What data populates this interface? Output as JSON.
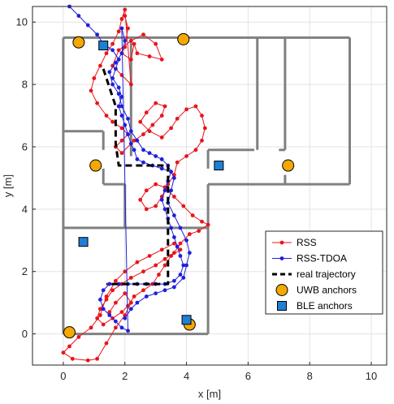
{
  "chart_data": {
    "type": "line",
    "xlabel": "x [m]",
    "ylabel": "y [m]",
    "xlim": [
      -1,
      10.5
    ],
    "ylim": [
      -1,
      10.5
    ],
    "xticks": [
      0,
      2,
      4,
      6,
      8,
      10
    ],
    "yticks": [
      0,
      2,
      4,
      6,
      8,
      10
    ],
    "xtick_labels": [
      "0",
      "2",
      "4",
      "6",
      "8",
      "10"
    ],
    "ytick_labels": [
      "0",
      "2",
      "4",
      "6",
      "8",
      "10"
    ],
    "grid": true,
    "legend_position": "bottom-right",
    "colors": {
      "rss": "#e8141b",
      "rss_tdoa": "#1f1fdb",
      "walls": "#808080",
      "uwb_fill": "#f5a800",
      "ble_fill": "#1f7fd6",
      "trajectory": "#000000"
    },
    "walls": [
      [
        [
          0,
          9.5
        ],
        [
          9.3,
          9.5
        ]
      ],
      [
        [
          9.3,
          9.5
        ],
        [
          9.3,
          4.8
        ]
      ],
      [
        [
          9.3,
          4.8
        ],
        [
          4.7,
          4.8
        ]
      ],
      [
        [
          4.7,
          4.8
        ],
        [
          4.7,
          0
        ]
      ],
      [
        [
          4.7,
          0
        ],
        [
          0,
          0
        ]
      ],
      [
        [
          0,
          0
        ],
        [
          0,
          9.5
        ]
      ],
      [
        [
          2.2,
          9.5
        ],
        [
          2.2,
          5.7
        ]
      ],
      [
        [
          2.2,
          5.5
        ],
        [
          2.2,
          5.5
        ]
      ],
      [
        [
          0,
          6.5
        ],
        [
          1.3,
          6.5
        ]
      ],
      [
        [
          1.3,
          6.5
        ],
        [
          1.3,
          5.9
        ]
      ],
      [
        [
          1.3,
          5.3
        ],
        [
          1.3,
          4.8
        ]
      ],
      [
        [
          1.3,
          4.8
        ],
        [
          2.0,
          4.8
        ]
      ],
      [
        [
          2.0,
          4.8
        ],
        [
          2.0,
          3.4
        ]
      ],
      [
        [
          0,
          3.4
        ],
        [
          4.7,
          3.4
        ]
      ],
      [
        [
          4.7,
          5.9
        ],
        [
          6.2,
          5.9
        ]
      ],
      [
        [
          6.3,
          9.5
        ],
        [
          6.3,
          5.9
        ]
      ],
      [
        [
          7.0,
          5.9
        ],
        [
          7.2,
          5.9
        ]
      ],
      [
        [
          7.2,
          9.5
        ],
        [
          7.2,
          5.9
        ]
      ],
      [
        [
          7.2,
          5.1
        ],
        [
          7.2,
          4.8
        ]
      ],
      [
        [
          4.7,
          5.9
        ],
        [
          4.7,
          5.3
        ]
      ]
    ],
    "series": [
      {
        "name": "RSS",
        "values": [
          [
            2.0,
            10.2
          ],
          [
            2.1,
            9.8
          ],
          [
            2.0,
            9.2
          ],
          [
            1.9,
            9.0
          ],
          [
            2.2,
            8.8
          ],
          [
            2.3,
            9.3
          ],
          [
            2.4,
            9.0
          ],
          [
            2.8,
            8.9
          ],
          [
            3.2,
            8.8
          ],
          [
            3.0,
            9.3
          ],
          [
            2.6,
            9.6
          ],
          [
            2.2,
            9.4
          ],
          [
            1.8,
            9.1
          ],
          [
            1.6,
            8.6
          ],
          [
            1.9,
            8.3
          ],
          [
            2.2,
            8.0
          ],
          [
            2.0,
            10.4
          ],
          [
            1.9,
            10.1
          ],
          [
            1.8,
            9.7
          ],
          [
            1.6,
            9.3
          ],
          [
            1.4,
            9.0
          ],
          [
            1.2,
            8.6
          ],
          [
            1.0,
            8.2
          ],
          [
            0.9,
            7.8
          ],
          [
            1.1,
            7.4
          ],
          [
            1.4,
            7.0
          ],
          [
            1.6,
            6.8
          ],
          [
            1.9,
            6.6
          ],
          [
            2.1,
            6.4
          ],
          [
            1.9,
            6.2
          ],
          [
            1.7,
            6.0
          ],
          [
            1.9,
            5.8
          ],
          [
            2.3,
            6.2
          ],
          [
            2.6,
            6.4
          ],
          [
            2.9,
            6.7
          ],
          [
            3.2,
            7.0
          ],
          [
            3.3,
            7.3
          ],
          [
            3.0,
            7.4
          ],
          [
            2.7,
            7.1
          ],
          [
            2.5,
            6.8
          ],
          [
            2.8,
            6.5
          ],
          [
            3.2,
            6.3
          ],
          [
            3.5,
            6.6
          ],
          [
            3.7,
            6.9
          ],
          [
            4.0,
            7.2
          ],
          [
            4.3,
            7.3
          ],
          [
            4.5,
            7.0
          ],
          [
            4.6,
            6.6
          ],
          [
            4.5,
            6.2
          ],
          [
            4.3,
            5.9
          ],
          [
            4.0,
            5.7
          ],
          [
            3.7,
            5.5
          ],
          [
            3.6,
            5.1
          ],
          [
            3.4,
            4.8
          ],
          [
            3.2,
            4.4
          ],
          [
            3.0,
            4.1
          ],
          [
            2.7,
            4.0
          ],
          [
            2.5,
            4.3
          ],
          [
            2.7,
            4.6
          ],
          [
            3.0,
            4.8
          ],
          [
            3.3,
            4.7
          ],
          [
            3.6,
            4.4
          ],
          [
            3.9,
            4.1
          ],
          [
            4.2,
            3.8
          ],
          [
            4.5,
            3.6
          ],
          [
            4.7,
            3.5
          ],
          [
            4.4,
            3.3
          ],
          [
            4.1,
            3.2
          ],
          [
            3.8,
            2.9
          ],
          [
            3.6,
            2.6
          ],
          [
            3.3,
            2.4
          ],
          [
            3.0,
            2.2
          ],
          [
            2.6,
            2.0
          ],
          [
            2.2,
            1.8
          ],
          [
            1.9,
            1.6
          ],
          [
            1.6,
            1.4
          ],
          [
            1.4,
            1.1
          ],
          [
            1.2,
            0.8
          ],
          [
            1.1,
            0.5
          ],
          [
            1.3,
            0.3
          ],
          [
            1.6,
            0.5
          ],
          [
            1.9,
            0.7
          ],
          [
            2.1,
            0.9
          ],
          [
            2.3,
            1.2
          ],
          [
            2.6,
            1.4
          ],
          [
            2.9,
            1.6
          ],
          [
            3.1,
            1.9
          ],
          [
            3.3,
            2.2
          ],
          [
            3.5,
            2.5
          ],
          [
            3.8,
            2.7
          ],
          [
            3.6,
            2.9
          ],
          [
            3.2,
            2.7
          ],
          [
            2.8,
            2.5
          ],
          [
            2.4,
            2.3
          ],
          [
            2.0,
            2.0
          ],
          [
            1.7,
            1.7
          ],
          [
            1.4,
            1.2
          ],
          [
            1.2,
            0.6
          ],
          [
            0.9,
            0.2
          ],
          [
            0.5,
            -0.1
          ],
          [
            0.2,
            -0.4
          ],
          [
            0.0,
            -0.6
          ],
          [
            0.3,
            -0.8
          ],
          [
            0.8,
            -0.85
          ],
          [
            1.1,
            -0.8
          ],
          [
            1.4,
            -0.3
          ],
          [
            1.7,
            0.2
          ],
          [
            2.0,
            0.6
          ],
          [
            2.2,
            1.0
          ],
          [
            2.0,
            1.3
          ],
          [
            1.7,
            1.0
          ],
          [
            1.5,
            0.7
          ]
        ]
      },
      {
        "name": "RSS-TDOA",
        "values": [
          [
            0.2,
            10.5
          ],
          [
            0.5,
            10.2
          ],
          [
            0.8,
            9.9
          ],
          [
            1.1,
            9.6
          ],
          [
            1.3,
            9.3
          ],
          [
            1.6,
            9.1
          ],
          [
            1.8,
            8.8
          ],
          [
            1.7,
            8.5
          ],
          [
            1.6,
            8.2
          ],
          [
            1.8,
            7.9
          ],
          [
            1.9,
            7.6
          ],
          [
            1.8,
            7.3
          ],
          [
            1.9,
            7.0
          ],
          [
            2.0,
            6.7
          ],
          [
            2.1,
            6.4
          ],
          [
            2.2,
            6.1
          ],
          [
            2.3,
            5.9
          ],
          [
            2.4,
            5.6
          ],
          [
            2.6,
            5.5
          ],
          [
            2.9,
            5.4
          ],
          [
            3.2,
            5.3
          ],
          [
            3.5,
            5.2
          ],
          [
            3.4,
            4.9
          ],
          [
            3.3,
            4.6
          ],
          [
            3.2,
            4.3
          ],
          [
            3.3,
            4.0
          ],
          [
            3.4,
            3.7
          ],
          [
            3.5,
            3.4
          ],
          [
            3.6,
            3.1
          ],
          [
            3.7,
            2.8
          ],
          [
            3.8,
            2.5
          ],
          [
            3.9,
            2.2
          ],
          [
            3.8,
            1.9
          ],
          [
            3.6,
            1.7
          ],
          [
            3.3,
            1.6
          ],
          [
            3.0,
            1.6
          ],
          [
            2.7,
            1.6
          ],
          [
            2.4,
            1.6
          ],
          [
            2.1,
            1.6
          ],
          [
            1.8,
            1.6
          ],
          [
            1.5,
            1.6
          ],
          [
            1.3,
            1.4
          ],
          [
            1.2,
            1.1
          ],
          [
            1.3,
            0.8
          ],
          [
            1.5,
            0.6
          ],
          [
            1.7,
            0.4
          ],
          [
            1.9,
            0.2
          ],
          [
            2.1,
            0.1
          ],
          [
            1.9,
            9.8
          ],
          [
            2.0,
            9.4
          ],
          [
            1.9,
            9.0
          ],
          [
            1.7,
            8.7
          ],
          [
            1.5,
            8.4
          ],
          [
            1.6,
            8.0
          ],
          [
            1.8,
            7.7
          ],
          [
            1.9,
            7.3
          ],
          [
            2.1,
            6.9
          ],
          [
            2.2,
            6.5
          ],
          [
            2.4,
            6.2
          ],
          [
            2.6,
            5.9
          ],
          [
            2.8,
            5.8
          ],
          [
            3.0,
            5.7
          ],
          [
            3.2,
            5.6
          ],
          [
            3.4,
            5.4
          ],
          [
            3.6,
            5.0
          ],
          [
            3.5,
            4.6
          ],
          [
            3.4,
            4.2
          ],
          [
            3.6,
            3.8
          ],
          [
            3.8,
            3.4
          ],
          [
            4.0,
            3.0
          ],
          [
            4.1,
            2.6
          ],
          [
            4.0,
            2.2
          ],
          [
            3.9,
            1.8
          ],
          [
            3.6,
            1.5
          ],
          [
            3.3,
            1.4
          ],
          [
            3.0,
            1.3
          ],
          [
            2.7,
            1.2
          ],
          [
            2.4,
            1.0
          ],
          [
            2.2,
            0.8
          ],
          [
            2.0,
            0.5
          ]
        ]
      },
      {
        "name": "real trajectory",
        "values": [
          [
            1.3,
            8.5
          ],
          [
            1.7,
            7.3
          ],
          [
            1.7,
            6.1
          ],
          [
            1.8,
            5.4
          ],
          [
            3.4,
            5.4
          ],
          [
            3.4,
            3.6
          ],
          [
            3.4,
            1.6
          ],
          [
            1.4,
            1.6
          ]
        ]
      },
      {
        "name": "UWB anchors",
        "values": [
          [
            0.5,
            9.35
          ],
          [
            3.9,
            9.45
          ],
          [
            1.05,
            5.4
          ],
          [
            7.3,
            5.4
          ],
          [
            0.2,
            0.05
          ],
          [
            4.1,
            0.3
          ]
        ]
      },
      {
        "name": "BLE anchors",
        "values": [
          [
            1.3,
            9.25
          ],
          [
            5.05,
            5.4
          ],
          [
            0.65,
            2.95
          ],
          [
            4.0,
            0.45
          ]
        ]
      }
    ]
  }
}
